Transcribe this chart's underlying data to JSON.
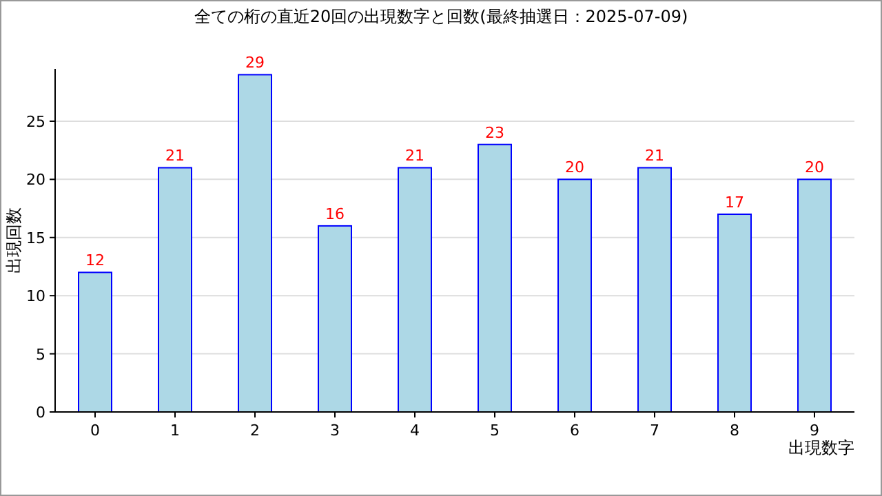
{
  "chart_data": {
    "type": "bar",
    "title": "全ての桁の直近20回の出現数字と回数(最終抽選日：2025-07-09)",
    "xlabel": "出現数字",
    "ylabel": "出現回数",
    "categories": [
      "0",
      "1",
      "2",
      "3",
      "4",
      "5",
      "6",
      "7",
      "8",
      "9"
    ],
    "values": [
      12,
      21,
      29,
      16,
      21,
      23,
      20,
      21,
      17,
      20
    ],
    "color": "#add8e6",
    "ylim": [
      0,
      29.5
    ],
    "yticks": [
      0,
      5,
      10,
      15,
      20,
      25
    ],
    "grid": "y",
    "data_labels": true
  }
}
